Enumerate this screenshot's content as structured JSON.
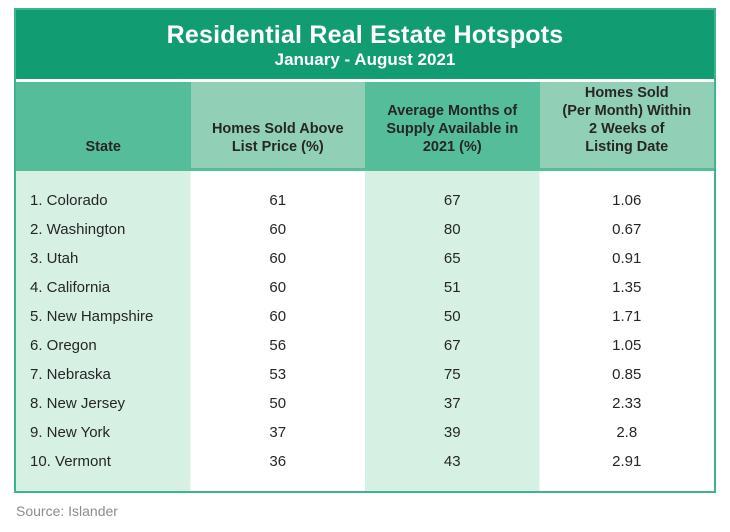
{
  "colors": {
    "title_bg": "#129c72",
    "header_dark_teal": "#56bd9a",
    "header_light_teal": "#91d0b6",
    "body_column_tint": "#d6f0e4",
    "table_border": "#3db390",
    "title_text": "#ffffff",
    "body_text": "#262626",
    "source_text": "#8c8c8c"
  },
  "chart_data": {
    "type": "table",
    "title": "Residential Real Estate Hotspots",
    "subtitle": "January - August 2021",
    "columns": [
      "State",
      "Homes Sold Above\nList Price (%)",
      "Average Months of\nSupply Available in\n2021 (%)",
      "Homes Sold\n(Per Month) Within\n2 Weeks of\nListing Date"
    ],
    "rows": [
      [
        "1. Colorado",
        "61",
        "67",
        "1.06"
      ],
      [
        "2. Washington",
        "60",
        "80",
        "0.67"
      ],
      [
        "3. Utah",
        "60",
        "65",
        "0.91"
      ],
      [
        "4. California",
        "60",
        "51",
        "1.35"
      ],
      [
        "5. New Hampshire",
        "60",
        "50",
        "1.71"
      ],
      [
        "6. Oregon",
        "56",
        "67",
        "1.05"
      ],
      [
        "7. Nebraska",
        "53",
        "75",
        "0.85"
      ],
      [
        "8. New Jersey",
        "50",
        "37",
        "2.33"
      ],
      [
        "9. New York",
        "37",
        "39",
        "2.8"
      ],
      [
        "10. Vermont",
        "36",
        "43",
        "2.91"
      ]
    ],
    "source": "Source: Islander",
    "layout": {
      "column_count": 4,
      "header_fill_pattern": [
        "dark",
        "light",
        "dark",
        "light"
      ],
      "body_fill_pattern": [
        "tint",
        "white",
        "tint",
        "white"
      ],
      "grid": false
    }
  }
}
